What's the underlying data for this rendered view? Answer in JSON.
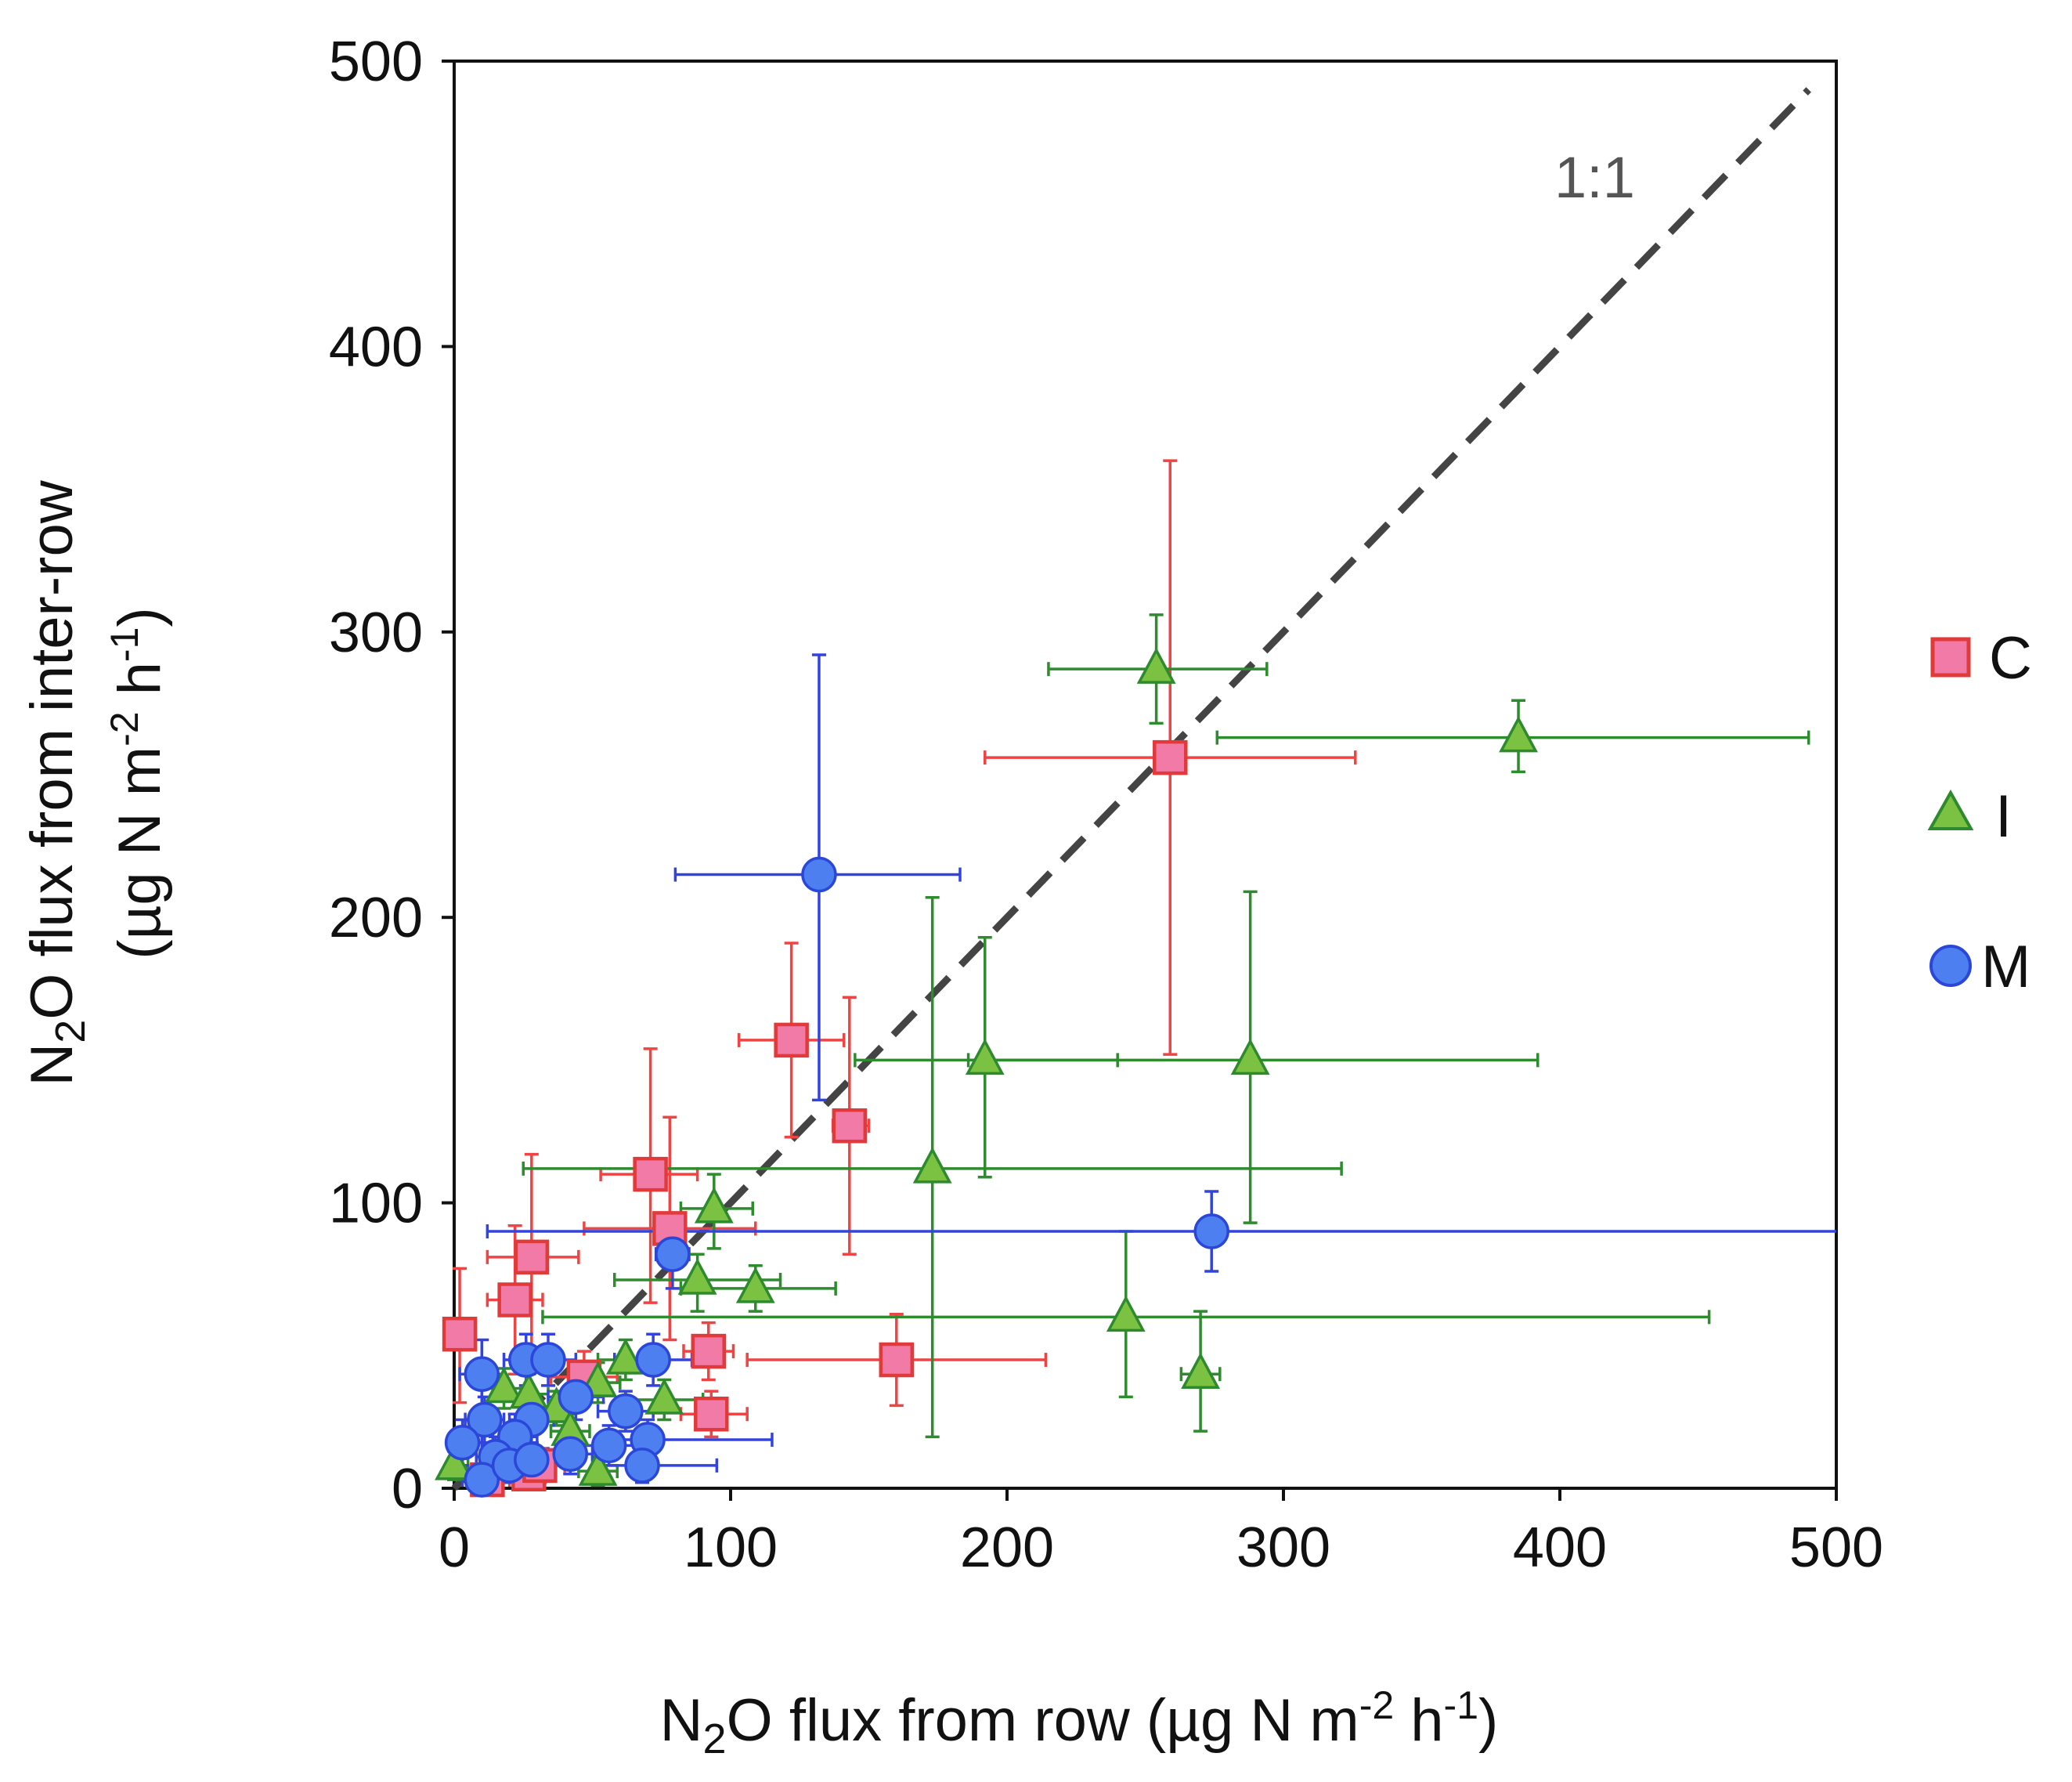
{
  "chart_data": {
    "type": "scatter",
    "title": "",
    "xlabel": "N2O flux from row (µg N m-2 h-1)",
    "ylabel": "N2O flux from inter-row (µg N m-2 h-1)",
    "x_title": {
      "pre": "N",
      "sub": "2",
      "mid": "O flux from row (µg N m",
      "sup1": "-2",
      "mid2": " h",
      "sup2": "-1",
      "post": ")"
    },
    "y_title_line1": {
      "pre": "N",
      "sub": "2",
      "post": "O flux from inter-row"
    },
    "y_title_line2": {
      "pre": "(µg N m",
      "sup1": "-2",
      "mid": " h",
      "sup2": "-1",
      "post": ")"
    },
    "xlim": [
      0,
      500
    ],
    "ylim": [
      0,
      500
    ],
    "xticks": [
      "0",
      "100",
      "200",
      "300",
      "400",
      "500"
    ],
    "yticks": [
      "0",
      "100",
      "200",
      "300",
      "400",
      "500"
    ],
    "grid": false,
    "reference_line": {
      "label": "1:1",
      "from": [
        0,
        0
      ],
      "to": [
        490,
        490
      ]
    },
    "legend_position": "right",
    "colors": {
      "C_fill": "#f27aa6",
      "C_edge": "#e03a3a",
      "C_err": "#ee4444",
      "I_fill": "#7cc242",
      "I_edge": "#2d8a2d",
      "I_err": "#2e8b2e",
      "M_fill": "#4d7ff0",
      "M_edge": "#2a47d8",
      "M_err": "#3344dd",
      "ref": "#444444"
    },
    "series": [
      {
        "name": "C",
        "marker": "square",
        "points": [
          {
            "x": 259,
            "y": 256,
            "xerr": [
              192,
              326
            ],
            "yerr": [
              152,
              360
            ]
          },
          {
            "x": 122,
            "y": 157,
            "xerr": [
              103,
              141
            ],
            "yerr": [
              123,
              191
            ]
          },
          {
            "x": 143,
            "y": 127,
            "xerr": [
              137,
              150
            ],
            "yerr": [
              82,
              172
            ]
          },
          {
            "x": 71,
            "y": 110,
            "xerr": [
              53,
              88
            ],
            "yerr": [
              65,
              154
            ]
          },
          {
            "x": 78,
            "y": 91,
            "xerr": [
              47,
              109
            ],
            "yerr": [
              52,
              130
            ]
          },
          {
            "x": 28,
            "y": 81,
            "xerr": [
              12,
              45
            ],
            "yerr": [
              45,
              117
            ]
          },
          {
            "x": 22,
            "y": 66,
            "xerr": [
              12,
              32
            ],
            "yerr": [
              40,
              92
            ]
          },
          {
            "x": 2,
            "y": 54,
            "xerr": [
              0,
              5
            ],
            "yerr": [
              30,
              77
            ]
          },
          {
            "x": 92,
            "y": 48,
            "xerr": [
              83,
              101
            ],
            "yerr": [
              38,
              58
            ]
          },
          {
            "x": 160,
            "y": 45,
            "xerr": [
              106,
              214
            ],
            "yerr": [
              29,
              61
            ]
          },
          {
            "x": 93,
            "y": 26,
            "xerr": [
              82,
              106
            ],
            "yerr": [
              18,
              34
            ]
          },
          {
            "x": 47,
            "y": 39,
            "xerr": [
              35,
              59
            ],
            "yerr": [
              30,
              48
            ]
          },
          {
            "x": 12,
            "y": 3,
            "xerr": [
              5,
              20
            ],
            "yerr": [
              0,
              8
            ]
          },
          {
            "x": 27,
            "y": 5,
            "xerr": [
              18,
              34
            ],
            "yerr": [
              0,
              12
            ]
          },
          {
            "x": 31,
            "y": 8,
            "xerr": [
              20,
              40
            ],
            "yerr": [
              2,
              14
            ]
          }
        ]
      },
      {
        "name": "I",
        "marker": "triangle",
        "points": [
          {
            "x": 254,
            "y": 287,
            "xerr": [
              215,
              294
            ],
            "yerr": [
              268,
              306
            ]
          },
          {
            "x": 385,
            "y": 263,
            "xerr": [
              276,
              490
            ],
            "yerr": [
              251,
              276
            ]
          },
          {
            "x": 192,
            "y": 150,
            "xerr": [
              145,
              240
            ],
            "yerr": [
              109,
              193
            ]
          },
          {
            "x": 288,
            "y": 150,
            "xerr": [
              186,
              392
            ],
            "yerr": [
              93,
              209
            ]
          },
          {
            "x": 173,
            "y": 112,
            "xerr": [
              25,
              321
            ],
            "yerr": [
              18,
              207
            ]
          },
          {
            "x": 94,
            "y": 98,
            "xerr": [
              82,
              108
            ],
            "yerr": [
              84,
              110
            ]
          },
          {
            "x": 88,
            "y": 73,
            "xerr": [
              58,
              118
            ],
            "yerr": [
              62,
              82
            ]
          },
          {
            "x": 109,
            "y": 70,
            "xerr": [
              82,
              138
            ],
            "yerr": [
              62,
              78
            ]
          },
          {
            "x": 243,
            "y": 60,
            "xerr": [
              32,
              454
            ],
            "yerr": [
              32,
              90
            ]
          },
          {
            "x": 270,
            "y": 40,
            "xerr": [
              263,
              277
            ],
            "yerr": [
              20,
              62
            ]
          },
          {
            "x": 62,
            "y": 45,
            "xerr": [
              52,
              72
            ],
            "yerr": [
              38,
              52
            ]
          },
          {
            "x": 76,
            "y": 31,
            "xerr": [
              62,
              90
            ],
            "yerr": [
              24,
              38
            ]
          },
          {
            "x": 52,
            "y": 37,
            "xerr": [
              44,
              60
            ],
            "yerr": [
              30,
              44
            ]
          },
          {
            "x": 18,
            "y": 35,
            "xerr": [
              10,
              26
            ],
            "yerr": [
              28,
              42
            ]
          },
          {
            "x": 27,
            "y": 33,
            "xerr": [
              20,
              34
            ],
            "yerr": [
              26,
              40
            ]
          },
          {
            "x": 37,
            "y": 28,
            "xerr": [
              30,
              44
            ],
            "yerr": [
              22,
              34
            ]
          },
          {
            "x": 42,
            "y": 20,
            "xerr": [
              35,
              49
            ],
            "yerr": [
              14,
              26
            ]
          },
          {
            "x": 52,
            "y": 6,
            "xerr": [
              45,
              59
            ],
            "yerr": [
              1,
              11
            ]
          },
          {
            "x": 0,
            "y": 8,
            "xerr": [
              0,
              5
            ],
            "yerr": [
              3,
              13
            ]
          }
        ]
      },
      {
        "name": "M",
        "marker": "circle",
        "points": [
          {
            "x": 132,
            "y": 215,
            "xerr": [
              80,
              183
            ],
            "yerr": [
              136,
              292
            ]
          },
          {
            "x": 274,
            "y": 90,
            "xerr": [
              12,
              500
            ],
            "yerr": [
              76,
              104
            ]
          },
          {
            "x": 79,
            "y": 82,
            "xerr": [
              73,
              85
            ],
            "yerr": [
              70,
              92
            ]
          },
          {
            "x": 72,
            "y": 45,
            "xerr": [
              58,
              86
            ],
            "yerr": [
              36,
              54
            ]
          },
          {
            "x": 10,
            "y": 40,
            "xerr": [
              2,
              18
            ],
            "yerr": [
              28,
              52
            ]
          },
          {
            "x": 26,
            "y": 45,
            "xerr": [
              18,
              34
            ],
            "yerr": [
              36,
              54
            ]
          },
          {
            "x": 34,
            "y": 45,
            "xerr": [
              24,
              44
            ],
            "yerr": [
              36,
              54
            ]
          },
          {
            "x": 44,
            "y": 32,
            "xerr": [
              34,
              54
            ],
            "yerr": [
              24,
              40
            ]
          },
          {
            "x": 62,
            "y": 27,
            "xerr": [
              52,
              72
            ],
            "yerr": [
              20,
              34
            ]
          },
          {
            "x": 11,
            "y": 24,
            "xerr": [
              4,
              18
            ],
            "yerr": [
              16,
              32
            ]
          },
          {
            "x": 28,
            "y": 24,
            "xerr": [
              20,
              36
            ],
            "yerr": [
              16,
              32
            ]
          },
          {
            "x": 3,
            "y": 16,
            "xerr": [
              0,
              10
            ],
            "yerr": [
              8,
              24
            ]
          },
          {
            "x": 22,
            "y": 18,
            "xerr": [
              14,
              30
            ],
            "yerr": [
              10,
              26
            ]
          },
          {
            "x": 56,
            "y": 15,
            "xerr": [
              46,
              66
            ],
            "yerr": [
              8,
              22
            ]
          },
          {
            "x": 70,
            "y": 17,
            "xerr": [
              56,
              115
            ],
            "yerr": [
              10,
              24
            ]
          },
          {
            "x": 15,
            "y": 11,
            "xerr": [
              8,
              22
            ],
            "yerr": [
              4,
              18
            ]
          },
          {
            "x": 42,
            "y": 12,
            "xerr": [
              34,
              50
            ],
            "yerr": [
              5,
              19
            ]
          },
          {
            "x": 68,
            "y": 8,
            "xerr": [
              50,
              95
            ],
            "yerr": [
              2,
              14
            ]
          },
          {
            "x": 10,
            "y": 3,
            "xerr": [
              3,
              17
            ],
            "yerr": [
              0,
              8
            ]
          },
          {
            "x": 20,
            "y": 8,
            "xerr": [
              12,
              28
            ],
            "yerr": [
              2,
              14
            ]
          },
          {
            "x": 28,
            "y": 10,
            "xerr": [
              20,
              36
            ],
            "yerr": [
              4,
              16
            ]
          }
        ]
      }
    ]
  }
}
